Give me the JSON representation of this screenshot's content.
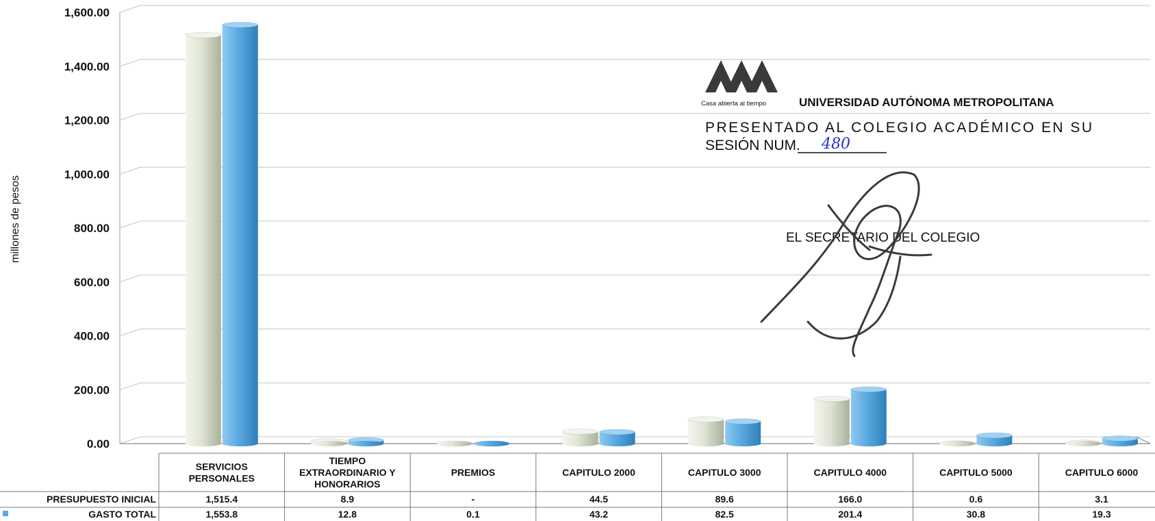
{
  "chart_data": {
    "type": "bar",
    "ylabel": "millones de pesos",
    "ylim": [
      0,
      1600
    ],
    "yticks": [
      "0.00",
      "200.00",
      "400.00",
      "600.00",
      "800.00",
      "1,000.00",
      "1,200.00",
      "1,400.00",
      "1,600.00"
    ],
    "grid": true,
    "categories": [
      [
        "SERVICIOS",
        "PERSONALES"
      ],
      [
        "TIEMPO",
        "EXTRAORDINARIO Y",
        "HONORARIOS"
      ],
      [
        "PREMIOS"
      ],
      [
        "CAPITULO 2000"
      ],
      [
        "CAPITULO 3000"
      ],
      [
        "CAPITULO 4000"
      ],
      [
        "CAPITULO 5000"
      ],
      [
        "CAPITULO 6000"
      ]
    ],
    "series": [
      {
        "name": "PRESUPUESTO INICIAL",
        "color": "#e4e8dc",
        "values": [
          1515.4,
          8.9,
          0,
          44.5,
          89.6,
          166.0,
          0.6,
          3.1
        ],
        "labels": [
          "1,515.4",
          "8.9",
          "-",
          "44.5",
          "89.6",
          "166.0",
          "0.6",
          "3.1"
        ]
      },
      {
        "name": "GASTO TOTAL",
        "color": "#5aa9e0",
        "values": [
          1553.8,
          12.8,
          0.1,
          43.2,
          82.5,
          201.4,
          30.8,
          19.3
        ],
        "labels": [
          "1,553.8",
          "12.8",
          "0.1",
          "43.2",
          "82.5",
          "201.4",
          "30.8",
          "19.3"
        ]
      }
    ]
  },
  "stamp": {
    "tagline": "Casa abierta al tiempo",
    "institution": "UNIVERSIDAD AUTÓNOMA METROPOLITANA",
    "presented_line1": "PRESENTADO AL COLEGIO ACADÉMICO EN SU",
    "presented_line2": "SESIÓN NUM.",
    "session_number": "480",
    "secretary": "EL SECRETARIO DEL COLEGIO"
  }
}
